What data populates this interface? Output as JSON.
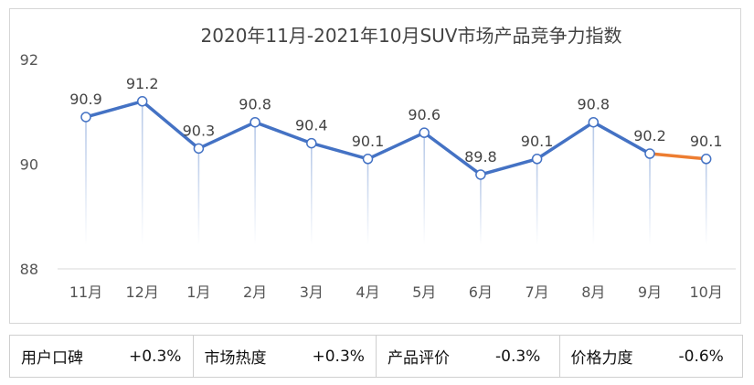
{
  "chart_data": {
    "type": "line",
    "title": "2020年11月-2021年10月SUV市场产品竞争力指数",
    "categories": [
      "11月",
      "12月",
      "1月",
      "2月",
      "3月",
      "4月",
      "5月",
      "6月",
      "7月",
      "8月",
      "9月",
      "10月"
    ],
    "values": [
      90.9,
      91.2,
      90.3,
      90.8,
      90.4,
      90.1,
      90.6,
      89.8,
      90.1,
      90.8,
      90.2,
      90.1
    ],
    "ylim": [
      88,
      92
    ],
    "yticks": [
      "92",
      "90",
      "88"
    ],
    "line_color": "#4472c4",
    "last_segment_color": "#ed7d31",
    "grid": false
  },
  "stats": [
    {
      "label": "用户口碑",
      "value": "+0.3%"
    },
    {
      "label": "市场热度",
      "value": "+0.3%"
    },
    {
      "label": "产品评价",
      "value": "-0.3%"
    },
    {
      "label": "价格力度",
      "value": "-0.6%"
    }
  ]
}
